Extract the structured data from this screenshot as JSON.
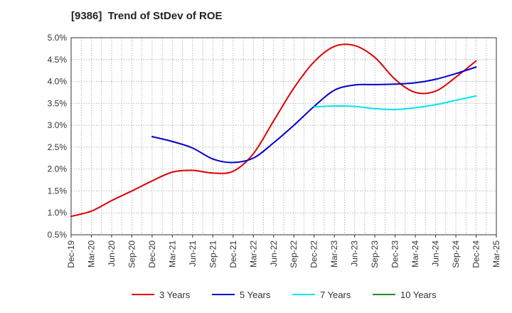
{
  "chart_data": {
    "type": "line",
    "title": "[9386]  Trend of StDev of ROE",
    "xlabel": "",
    "ylabel": "",
    "x_ticks": [
      "Dec-19",
      "Mar-20",
      "Jun-20",
      "Sep-20",
      "Dec-20",
      "Mar-21",
      "Jun-21",
      "Sep-21",
      "Dec-21",
      "Mar-22",
      "Jun-22",
      "Sep-22",
      "Dec-22",
      "Mar-23",
      "Jun-23",
      "Sep-23",
      "Dec-23",
      "Mar-24",
      "Jun-24",
      "Sep-24",
      "Dec-24",
      "Mar-25"
    ],
    "y_ticks": [
      "0.5%",
      "1.0%",
      "1.5%",
      "2.0%",
      "2.5%",
      "3.0%",
      "3.5%",
      "4.0%",
      "4.5%",
      "5.0%"
    ],
    "ylim": [
      0.5,
      5.0
    ],
    "y_unit": "%",
    "grid": true,
    "legend_position": "bottom",
    "series": [
      {
        "name": "3 Years",
        "color": "#dd0000",
        "points": [
          {
            "x": "Dec-19",
            "y": 0.92
          },
          {
            "x": "Mar-20",
            "y": 1.04
          },
          {
            "x": "Jun-20",
            "y": 1.28
          },
          {
            "x": "Sep-20",
            "y": 1.5
          },
          {
            "x": "Dec-20",
            "y": 1.73
          },
          {
            "x": "Mar-21",
            "y": 1.93
          },
          {
            "x": "Jun-21",
            "y": 1.97
          },
          {
            "x": "Sep-21",
            "y": 1.91
          },
          {
            "x": "Dec-21",
            "y": 1.95
          },
          {
            "x": "Mar-22",
            "y": 2.35
          },
          {
            "x": "Jun-22",
            "y": 3.1
          },
          {
            "x": "Sep-22",
            "y": 3.85
          },
          {
            "x": "Dec-22",
            "y": 4.45
          },
          {
            "x": "Mar-23",
            "y": 4.8
          },
          {
            "x": "Jun-23",
            "y": 4.82
          },
          {
            "x": "Sep-23",
            "y": 4.55
          },
          {
            "x": "Dec-23",
            "y": 4.05
          },
          {
            "x": "Mar-24",
            "y": 3.75
          },
          {
            "x": "Jun-24",
            "y": 3.78
          },
          {
            "x": "Sep-24",
            "y": 4.1
          },
          {
            "x": "Dec-24",
            "y": 4.47
          }
        ]
      },
      {
        "name": "5 Years",
        "color": "#0000cc",
        "points": [
          {
            "x": "Dec-20",
            "y": 2.74
          },
          {
            "x": "Mar-21",
            "y": 2.63
          },
          {
            "x": "Jun-21",
            "y": 2.48
          },
          {
            "x": "Sep-21",
            "y": 2.23
          },
          {
            "x": "Dec-21",
            "y": 2.15
          },
          {
            "x": "Mar-22",
            "y": 2.25
          },
          {
            "x": "Jun-22",
            "y": 2.6
          },
          {
            "x": "Sep-22",
            "y": 3.0
          },
          {
            "x": "Dec-22",
            "y": 3.43
          },
          {
            "x": "Mar-23",
            "y": 3.8
          },
          {
            "x": "Jun-23",
            "y": 3.92
          },
          {
            "x": "Sep-23",
            "y": 3.93
          },
          {
            "x": "Dec-23",
            "y": 3.94
          },
          {
            "x": "Mar-24",
            "y": 3.97
          },
          {
            "x": "Jun-24",
            "y": 4.05
          },
          {
            "x": "Sep-24",
            "y": 4.18
          },
          {
            "x": "Dec-24",
            "y": 4.33
          }
        ]
      },
      {
        "name": "7 Years",
        "color": "#00e5ee",
        "points": [
          {
            "x": "Dec-22",
            "y": 3.42
          },
          {
            "x": "Mar-23",
            "y": 3.44
          },
          {
            "x": "Jun-23",
            "y": 3.43
          },
          {
            "x": "Sep-23",
            "y": 3.38
          },
          {
            "x": "Dec-23",
            "y": 3.36
          },
          {
            "x": "Mar-24",
            "y": 3.4
          },
          {
            "x": "Jun-24",
            "y": 3.47
          },
          {
            "x": "Sep-24",
            "y": 3.57
          },
          {
            "x": "Dec-24",
            "y": 3.67
          }
        ]
      },
      {
        "name": "10 Years",
        "color": "#228b22",
        "points": []
      }
    ]
  }
}
